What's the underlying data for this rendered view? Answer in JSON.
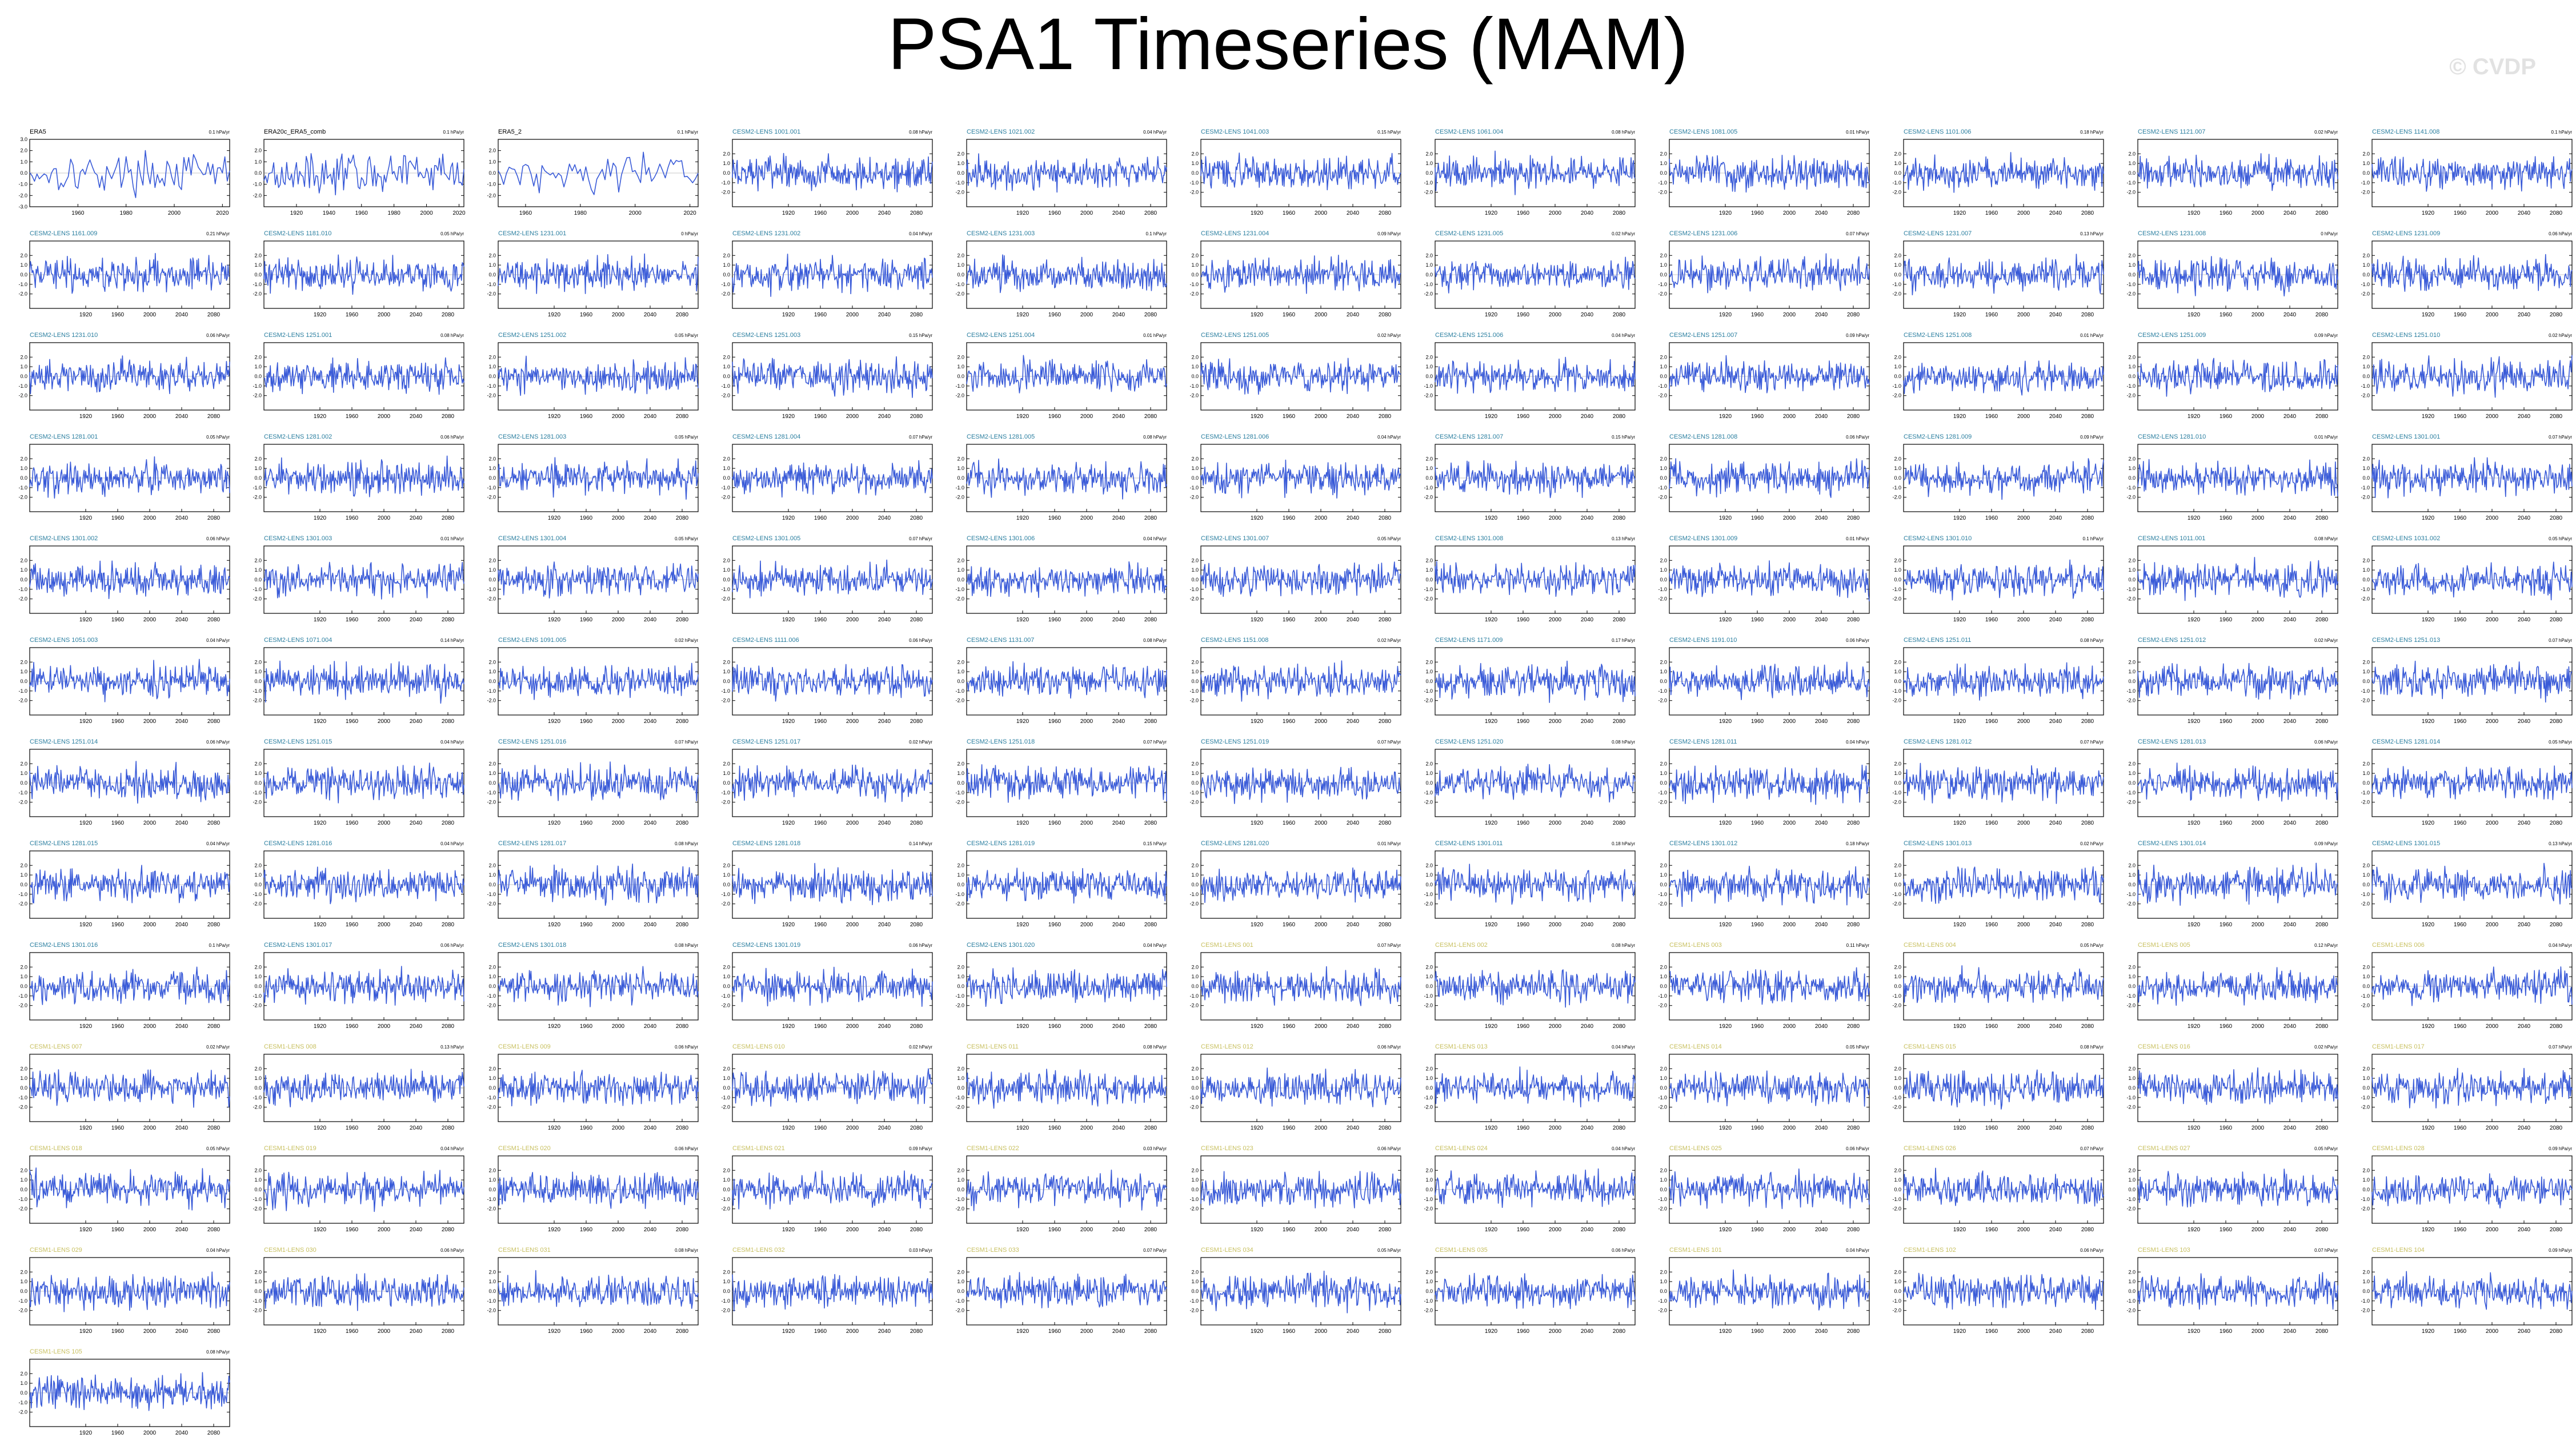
{
  "title": "PSA1 Timeseries (MAM)",
  "watermark": "© CVDP",
  "colors": {
    "line": "#3a5bd8",
    "axis": "#000000",
    "title_obs": "#000000",
    "title_cesm2": "#2b7fa0",
    "title_cesm1": "#c8c060"
  },
  "chart_data": {
    "type": "line",
    "panels": [
      {
        "title": "ERA5",
        "trend": "0.1 hPa/yr",
        "group": "obs",
        "xlim": [
          1940,
          2023
        ],
        "ylim": [
          -3.0,
          3.0
        ],
        "xticks": [
          1960,
          1980,
          2000,
          2020
        ],
        "yticks": [
          -3.0,
          -2.0,
          -1.0,
          0.0,
          1.0,
          2.0,
          3.0
        ]
      },
      {
        "title": "ERA20c_ERA5_comb",
        "trend": "0.1 hPa/yr",
        "group": "obs",
        "xlim": [
          1900,
          2023
        ],
        "ylim": [
          -3.0,
          3.0
        ],
        "xticks": [
          1920,
          1940,
          1960,
          1980,
          2000,
          2020
        ],
        "yticks": [
          -2.0,
          -1.0,
          0.0,
          1.0,
          2.0
        ]
      },
      {
        "title": "ERA5_2",
        "trend": "0.1 hPa/yr",
        "group": "obs",
        "xlim": [
          1950,
          2023
        ],
        "ylim": [
          -3.0,
          3.0
        ],
        "xticks": [
          1960,
          1980,
          2000,
          2020
        ],
        "yticks": [
          -2.0,
          -1.0,
          0.0,
          1.0,
          2.0
        ]
      },
      {
        "title": "CESM2-LENS 1001.001",
        "trend": "0.08 hPa/yr",
        "group": "cesm2"
      },
      {
        "title": "CESM2-LENS 1021.002",
        "trend": "0.04 hPa/yr",
        "group": "cesm2"
      },
      {
        "title": "CESM2-LENS 1041.003",
        "trend": "0.15 hPa/yr",
        "group": "cesm2"
      },
      {
        "title": "CESM2-LENS 1061.004",
        "trend": "0.08 hPa/yr",
        "group": "cesm2"
      },
      {
        "title": "CESM2-LENS 1081.005",
        "trend": "0.01 hPa/yr",
        "group": "cesm2"
      },
      {
        "title": "CESM2-LENS 1101.006",
        "trend": "0.18 hPa/yr",
        "group": "cesm2"
      },
      {
        "title": "CESM2-LENS 1121.007",
        "trend": "0.02 hPa/yr",
        "group": "cesm2"
      },
      {
        "title": "CESM2-LENS 1141.008",
        "trend": "0.1 hPa/yr",
        "group": "cesm2"
      },
      {
        "title": "CESM2-LENS 1161.009",
        "trend": "0.21 hPa/yr",
        "group": "cesm2"
      },
      {
        "title": "CESM2-LENS 1181.010",
        "trend": "0.05 hPa/yr",
        "group": "cesm2"
      },
      {
        "title": "CESM2-LENS 1231.001",
        "trend": "0 hPa/yr",
        "group": "cesm2"
      },
      {
        "title": "CESM2-LENS 1231.002",
        "trend": "0.04 hPa/yr",
        "group": "cesm2"
      },
      {
        "title": "CESM2-LENS 1231.003",
        "trend": "0.1 hPa/yr",
        "group": "cesm2"
      },
      {
        "title": "CESM2-LENS 1231.004",
        "trend": "0.09 hPa/yr",
        "group": "cesm2"
      },
      {
        "title": "CESM2-LENS 1231.005",
        "trend": "0.02 hPa/yr",
        "group": "cesm2"
      },
      {
        "title": "CESM2-LENS 1231.006",
        "trend": "0.07 hPa/yr",
        "group": "cesm2"
      },
      {
        "title": "CESM2-LENS 1231.007",
        "trend": "0.13 hPa/yr",
        "group": "cesm2"
      },
      {
        "title": "CESM2-LENS 1231.008",
        "trend": "0 hPa/yr",
        "group": "cesm2"
      },
      {
        "title": "CESM2-LENS 1231.009",
        "trend": "0.06 hPa/yr",
        "group": "cesm2"
      },
      {
        "title": "CESM2-LENS 1231.010",
        "trend": "0.06 hPa/yr",
        "group": "cesm2"
      },
      {
        "title": "CESM2-LENS 1251.001",
        "trend": "0.08 hPa/yr",
        "group": "cesm2"
      },
      {
        "title": "CESM2-LENS 1251.002",
        "trend": "0.05 hPa/yr",
        "group": "cesm2"
      },
      {
        "title": "CESM2-LENS 1251.003",
        "trend": "0.15 hPa/yr",
        "group": "cesm2"
      },
      {
        "title": "CESM2-LENS 1251.004",
        "trend": "0.01 hPa/yr",
        "group": "cesm2"
      },
      {
        "title": "CESM2-LENS 1251.005",
        "trend": "0.02 hPa/yr",
        "group": "cesm2"
      },
      {
        "title": "CESM2-LENS 1251.006",
        "trend": "0.04 hPa/yr",
        "group": "cesm2"
      },
      {
        "title": "CESM2-LENS 1251.007",
        "trend": "0.09 hPa/yr",
        "group": "cesm2"
      },
      {
        "title": "CESM2-LENS 1251.008",
        "trend": "0.01 hPa/yr",
        "group": "cesm2"
      },
      {
        "title": "CESM2-LENS 1251.009",
        "trend": "0.09 hPa/yr",
        "group": "cesm2"
      },
      {
        "title": "CESM2-LENS 1251.010",
        "trend": "0.02 hPa/yr",
        "group": "cesm2"
      },
      {
        "title": "CESM2-LENS 1281.001",
        "trend": "0.05 hPa/yr",
        "group": "cesm2"
      },
      {
        "title": "CESM2-LENS 1281.002",
        "trend": "0.06 hPa/yr",
        "group": "cesm2"
      },
      {
        "title": "CESM2-LENS 1281.003",
        "trend": "0.05 hPa/yr",
        "group": "cesm2"
      },
      {
        "title": "CESM2-LENS 1281.004",
        "trend": "0.07 hPa/yr",
        "group": "cesm2"
      },
      {
        "title": "CESM2-LENS 1281.005",
        "trend": "0.08 hPa/yr",
        "group": "cesm2"
      },
      {
        "title": "CESM2-LENS 1281.006",
        "trend": "0.04 hPa/yr",
        "group": "cesm2"
      },
      {
        "title": "CESM2-LENS 1281.007",
        "trend": "0.15 hPa/yr",
        "group": "cesm2"
      },
      {
        "title": "CESM2-LENS 1281.008",
        "trend": "0.06 hPa/yr",
        "group": "cesm2"
      },
      {
        "title": "CESM2-LENS 1281.009",
        "trend": "0.09 hPa/yr",
        "group": "cesm2"
      },
      {
        "title": "CESM2-LENS 1281.010",
        "trend": "0.01 hPa/yr",
        "group": "cesm2"
      },
      {
        "title": "CESM2-LENS 1301.001",
        "trend": "0.07 hPa/yr",
        "group": "cesm2"
      },
      {
        "title": "CESM2-LENS 1301.002",
        "trend": "0.06 hPa/yr",
        "group": "cesm2"
      },
      {
        "title": "CESM2-LENS 1301.003",
        "trend": "0.01 hPa/yr",
        "group": "cesm2"
      },
      {
        "title": "CESM2-LENS 1301.004",
        "trend": "0.05 hPa/yr",
        "group": "cesm2"
      },
      {
        "title": "CESM2-LENS 1301.005",
        "trend": "0.07 hPa/yr",
        "group": "cesm2"
      },
      {
        "title": "CESM2-LENS 1301.006",
        "trend": "0.04 hPa/yr",
        "group": "cesm2"
      },
      {
        "title": "CESM2-LENS 1301.007",
        "trend": "0.05 hPa/yr",
        "group": "cesm2"
      },
      {
        "title": "CESM2-LENS 1301.008",
        "trend": "0.13 hPa/yr",
        "group": "cesm2"
      },
      {
        "title": "CESM2-LENS 1301.009",
        "trend": "0.01 hPa/yr",
        "group": "cesm2"
      },
      {
        "title": "CESM2-LENS 1301.010",
        "trend": "0.1 hPa/yr",
        "group": "cesm2"
      },
      {
        "title": "CESM2-LENS 1011.001",
        "trend": "0.08 hPa/yr",
        "group": "cesm2"
      },
      {
        "title": "CESM2-LENS 1031.002",
        "trend": "0.05 hPa/yr",
        "group": "cesm2"
      },
      {
        "title": "CESM2-LENS 1051.003",
        "trend": "0.04 hPa/yr",
        "group": "cesm2"
      },
      {
        "title": "CESM2-LENS 1071.004",
        "trend": "0.14 hPa/yr",
        "group": "cesm2"
      },
      {
        "title": "CESM2-LENS 1091.005",
        "trend": "0.02 hPa/yr",
        "group": "cesm2"
      },
      {
        "title": "CESM2-LENS 1111.006",
        "trend": "0.06 hPa/yr",
        "group": "cesm2"
      },
      {
        "title": "CESM2-LENS 1131.007",
        "trend": "0.08 hPa/yr",
        "group": "cesm2"
      },
      {
        "title": "CESM2-LENS 1151.008",
        "trend": "0.02 hPa/yr",
        "group": "cesm2"
      },
      {
        "title": "CESM2-LENS 1171.009",
        "trend": "0.17 hPa/yr",
        "group": "cesm2"
      },
      {
        "title": "CESM2-LENS 1191.010",
        "trend": "0.06 hPa/yr",
        "group": "cesm2"
      },
      {
        "title": "CESM2-LENS 1251.011",
        "trend": "0.08 hPa/yr",
        "group": "cesm2"
      },
      {
        "title": "CESM2-LENS 1251.012",
        "trend": "0.02 hPa/yr",
        "group": "cesm2"
      },
      {
        "title": "CESM2-LENS 1251.013",
        "trend": "0.07 hPa/yr",
        "group": "cesm2"
      },
      {
        "title": "CESM2-LENS 1251.014",
        "trend": "0.06 hPa/yr",
        "group": "cesm2"
      },
      {
        "title": "CESM2-LENS 1251.015",
        "trend": "0.04 hPa/yr",
        "group": "cesm2"
      },
      {
        "title": "CESM2-LENS 1251.016",
        "trend": "0.07 hPa/yr",
        "group": "cesm2"
      },
      {
        "title": "CESM2-LENS 1251.017",
        "trend": "0.02 hPa/yr",
        "group": "cesm2"
      },
      {
        "title": "CESM2-LENS 1251.018",
        "trend": "0.07 hPa/yr",
        "group": "cesm2"
      },
      {
        "title": "CESM2-LENS 1251.019",
        "trend": "0.07 hPa/yr",
        "group": "cesm2"
      },
      {
        "title": "CESM2-LENS 1251.020",
        "trend": "0.08 hPa/yr",
        "group": "cesm2"
      },
      {
        "title": "CESM2-LENS 1281.011",
        "trend": "0.04 hPa/yr",
        "group": "cesm2"
      },
      {
        "title": "CESM2-LENS 1281.012",
        "trend": "0.07 hPa/yr",
        "group": "cesm2"
      },
      {
        "title": "CESM2-LENS 1281.013",
        "trend": "0.06 hPa/yr",
        "group": "cesm2"
      },
      {
        "title": "CESM2-LENS 1281.014",
        "trend": "0.05 hPa/yr",
        "group": "cesm2"
      },
      {
        "title": "CESM2-LENS 1281.015",
        "trend": "0.04 hPa/yr",
        "group": "cesm2"
      },
      {
        "title": "CESM2-LENS 1281.016",
        "trend": "0.04 hPa/yr",
        "group": "cesm2"
      },
      {
        "title": "CESM2-LENS 1281.017",
        "trend": "0.08 hPa/yr",
        "group": "cesm2"
      },
      {
        "title": "CESM2-LENS 1281.018",
        "trend": "0.14 hPa/yr",
        "group": "cesm2"
      },
      {
        "title": "CESM2-LENS 1281.019",
        "trend": "0.15 hPa/yr",
        "group": "cesm2"
      },
      {
        "title": "CESM2-LENS 1281.020",
        "trend": "0.01 hPa/yr",
        "group": "cesm2"
      },
      {
        "title": "CESM2-LENS 1301.011",
        "trend": "0.18 hPa/yr",
        "group": "cesm2"
      },
      {
        "title": "CESM2-LENS 1301.012",
        "trend": "0.18 hPa/yr",
        "group": "cesm2"
      },
      {
        "title": "CESM2-LENS 1301.013",
        "trend": "0.02 hPa/yr",
        "group": "cesm2"
      },
      {
        "title": "CESM2-LENS 1301.014",
        "trend": "0.09 hPa/yr",
        "group": "cesm2"
      },
      {
        "title": "CESM2-LENS 1301.015",
        "trend": "0.13 hPa/yr",
        "group": "cesm2"
      },
      {
        "title": "CESM2-LENS 1301.016",
        "trend": "0.1 hPa/yr",
        "group": "cesm2"
      },
      {
        "title": "CESM2-LENS 1301.017",
        "trend": "0.06 hPa/yr",
        "group": "cesm2"
      },
      {
        "title": "CESM2-LENS 1301.018",
        "trend": "0.08 hPa/yr",
        "group": "cesm2"
      },
      {
        "title": "CESM2-LENS 1301.019",
        "trend": "0.06 hPa/yr",
        "group": "cesm2"
      },
      {
        "title": "CESM2-LENS 1301.020",
        "trend": "0.04 hPa/yr",
        "group": "cesm2"
      },
      {
        "title": "CESM1-LENS 001",
        "trend": "0.07 hPa/yr",
        "group": "cesm1"
      },
      {
        "title": "CESM1-LENS 002",
        "trend": "0.08 hPa/yr",
        "group": "cesm1"
      },
      {
        "title": "CESM1-LENS 003",
        "trend": "0.11 hPa/yr",
        "group": "cesm1"
      },
      {
        "title": "CESM1-LENS 004",
        "trend": "0.05 hPa/yr",
        "group": "cesm1"
      },
      {
        "title": "CESM1-LENS 005",
        "trend": "0.12 hPa/yr",
        "group": "cesm1"
      },
      {
        "title": "CESM1-LENS 006",
        "trend": "0.04 hPa/yr",
        "group": "cesm1"
      },
      {
        "title": "CESM1-LENS 007",
        "trend": "0.02 hPa/yr",
        "group": "cesm1"
      },
      {
        "title": "CESM1-LENS 008",
        "trend": "0.13 hPa/yr",
        "group": "cesm1"
      },
      {
        "title": "CESM1-LENS 009",
        "trend": "0.06 hPa/yr",
        "group": "cesm1"
      },
      {
        "title": "CESM1-LENS 010",
        "trend": "0.02 hPa/yr",
        "group": "cesm1"
      },
      {
        "title": "CESM1-LENS 011",
        "trend": "0.08 hPa/yr",
        "group": "cesm1"
      },
      {
        "title": "CESM1-LENS 012",
        "trend": "0.06 hPa/yr",
        "group": "cesm1"
      },
      {
        "title": "CESM1-LENS 013",
        "trend": "0.04 hPa/yr",
        "group": "cesm1"
      },
      {
        "title": "CESM1-LENS 014",
        "trend": "0.05 hPa/yr",
        "group": "cesm1"
      },
      {
        "title": "CESM1-LENS 015",
        "trend": "0.08 hPa/yr",
        "group": "cesm1"
      },
      {
        "title": "CESM1-LENS 016",
        "trend": "0.02 hPa/yr",
        "group": "cesm1"
      },
      {
        "title": "CESM1-LENS 017",
        "trend": "0.07 hPa/yr",
        "group": "cesm1"
      },
      {
        "title": "CESM1-LENS 018",
        "trend": "0.05 hPa/yr",
        "group": "cesm1"
      },
      {
        "title": "CESM1-LENS 019",
        "trend": "0.04 hPa/yr",
        "group": "cesm1"
      },
      {
        "title": "CESM1-LENS 020",
        "trend": "0.06 hPa/yr",
        "group": "cesm1"
      },
      {
        "title": "CESM1-LENS 021",
        "trend": "0.09 hPa/yr",
        "group": "cesm1"
      },
      {
        "title": "CESM1-LENS 022",
        "trend": "0.03 hPa/yr",
        "group": "cesm1"
      },
      {
        "title": "CESM1-LENS 023",
        "trend": "0.06 hPa/yr",
        "group": "cesm1"
      },
      {
        "title": "CESM1-LENS 024",
        "trend": "0.04 hPa/yr",
        "group": "cesm1"
      },
      {
        "title": "CESM1-LENS 025",
        "trend": "0.06 hPa/yr",
        "group": "cesm1"
      },
      {
        "title": "CESM1-LENS 026",
        "trend": "0.07 hPa/yr",
        "group": "cesm1"
      },
      {
        "title": "CESM1-LENS 027",
        "trend": "0.05 hPa/yr",
        "group": "cesm1"
      },
      {
        "title": "CESM1-LENS 028",
        "trend": "0.09 hPa/yr",
        "group": "cesm1"
      },
      {
        "title": "CESM1-LENS 029",
        "trend": "0.04 hPa/yr",
        "group": "cesm1"
      },
      {
        "title": "CESM1-LENS 030",
        "trend": "0.06 hPa/yr",
        "group": "cesm1"
      },
      {
        "title": "CESM1-LENS 031",
        "trend": "0.08 hPa/yr",
        "group": "cesm1"
      },
      {
        "title": "CESM1-LENS 032",
        "trend": "0.03 hPa/yr",
        "group": "cesm1"
      },
      {
        "title": "CESM1-LENS 033",
        "trend": "0.07 hPa/yr",
        "group": "cesm1"
      },
      {
        "title": "CESM1-LENS 034",
        "trend": "0.05 hPa/yr",
        "group": "cesm1"
      },
      {
        "title": "CESM1-LENS 035",
        "trend": "0.06 hPa/yr",
        "group": "cesm1"
      },
      {
        "title": "CESM1-LENS 101",
        "trend": "0.04 hPa/yr",
        "group": "cesm1"
      },
      {
        "title": "CESM1-LENS 102",
        "trend": "0.06 hPa/yr",
        "group": "cesm1"
      },
      {
        "title": "CESM1-LENS 103",
        "trend": "0.07 hPa/yr",
        "group": "cesm1"
      },
      {
        "title": "CESM1-LENS 104",
        "trend": "0.09 hPa/yr",
        "group": "cesm1"
      },
      {
        "title": "CESM1-LENS 105",
        "trend": "0.08 hPa/yr",
        "group": "cesm1"
      }
    ],
    "model_defaults": {
      "xlim": [
        1850,
        2100
      ],
      "ylim": [
        -3.5,
        3.5
      ],
      "xticks": [
        1920,
        1960,
        2000,
        2040,
        2080
      ],
      "yticks": [
        -2.0,
        -1.0,
        0.0,
        1.0,
        2.0
      ]
    }
  }
}
